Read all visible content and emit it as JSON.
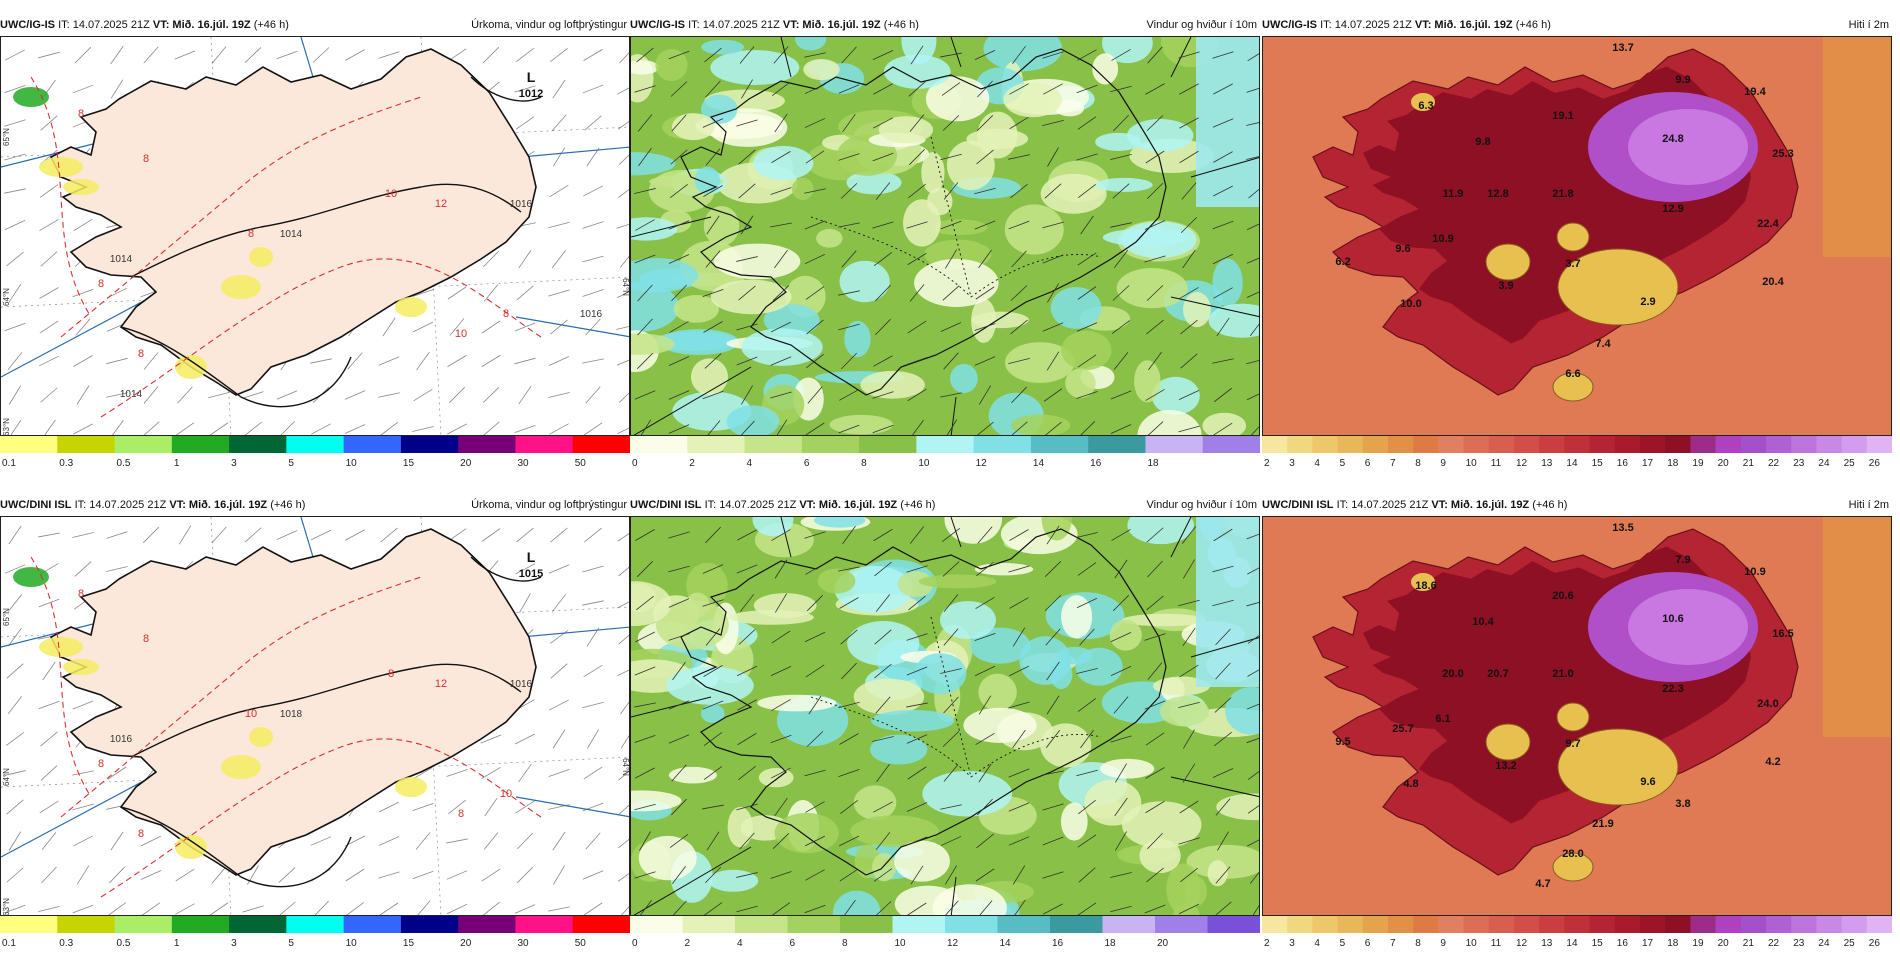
{
  "panels": [
    {
      "model": "UWC/IG-IS",
      "it": "IT: 14.07.2025 21Z",
      "vt": "VT: Mið. 16.júl. 19Z",
      "lead": "(+46 h)",
      "title": "Úrkoma, vindur og loftþrýstingur",
      "kind": "precip",
      "low_label": "L",
      "low_value": "1012",
      "isobar_labels": [
        "1016",
        "1014",
        "1014",
        "1014",
        "1016"
      ],
      "red_labels": [
        "8",
        "8",
        "8",
        "10",
        "12",
        "8",
        "10",
        "8",
        "8"
      ],
      "lat_labels": [
        "65°N",
        "64°N",
        "63°N",
        "64°N"
      ]
    },
    {
      "model": "UWC/IG-IS",
      "it": "IT: 14.07.2025 21Z",
      "vt": "VT: Mið. 16.júl. 19Z",
      "lead": "(+46 h)",
      "title": "Vindur og hviður í 10m",
      "kind": "wind"
    },
    {
      "model": "UWC/IG-IS",
      "it": "IT: 14.07.2025 21Z",
      "vt": "VT: Mið. 16.júl. 19Z",
      "lead": "(+46 h)",
      "title": "Hiti í 2m",
      "kind": "temp",
      "values": [
        "13.7",
        "9.9",
        "19.4",
        "6.3",
        "19.1",
        "9.8",
        "24.8",
        "25.3",
        "11.9",
        "12.8",
        "21.8",
        "12.9",
        "22.4",
        "9.6",
        "10.9",
        "6.2",
        "3.9",
        "3.7",
        "10.0",
        "20.4",
        "2.9",
        "7.4",
        "6.6"
      ]
    },
    {
      "model": "UWC/DINI ISL",
      "it": "IT: 14.07.2025 21Z",
      "vt": "VT: Mið. 16.júl. 19Z",
      "lead": "(+46 h)",
      "title": "Úrkoma, vindur og loftþrýstingur",
      "kind": "precip",
      "low_label": "L",
      "low_value": "1015",
      "isobar_labels": [
        "1016",
        "1018",
        "1016"
      ],
      "red_labels": [
        "8",
        "8",
        "10",
        "8",
        "12",
        "10",
        "8",
        "8",
        "8"
      ],
      "lat_labels": [
        "65°N",
        "64°N",
        "63°N",
        "64°N"
      ]
    },
    {
      "model": "UWC/DINI ISL",
      "it": "IT: 14.07.2025 21Z",
      "vt": "VT: Mið. 16.júl. 19Z",
      "lead": "(+46 h)",
      "title": "Vindur og hviður í 10m",
      "kind": "wind"
    },
    {
      "model": "UWC/DINI ISL",
      "it": "IT: 14.07.2025 21Z",
      "vt": "VT: Mið. 16.júl. 19Z",
      "lead": "(+46 h)",
      "title": "Hiti í 2m",
      "kind": "temp",
      "values": [
        "13.5",
        "7.9",
        "10.9",
        "18.6",
        "20.6",
        "10.4",
        "10.6",
        "16.5",
        "20.0",
        "20.7",
        "21.0",
        "22.3",
        "24.0",
        "25.7",
        "6.1",
        "9.5",
        "13.2",
        "9.7",
        "4.8",
        "4.2",
        "9.6",
        "21.9",
        "28.0",
        "3.8",
        "4.7"
      ]
    }
  ],
  "legends": {
    "precip": {
      "labels": [
        "0.1",
        "0.3",
        "0.5",
        "1",
        "3",
        "5",
        "10",
        "15",
        "20",
        "30",
        "50"
      ],
      "colors": [
        "#ffff80",
        "#c8d400",
        "#aaee66",
        "#22aa22",
        "#006633",
        "#00ffee",
        "#3366ff",
        "#000088",
        "#770077",
        "#ff1188",
        "#ff0000"
      ]
    },
    "wind_top": {
      "labels": [
        "0",
        "2",
        "4",
        "6",
        "8",
        "10",
        "12",
        "14",
        "16",
        "18"
      ],
      "colors": [
        "#fafee8",
        "#e4f2b8",
        "#c6e48a",
        "#a4d25e",
        "#88c048",
        "#b0f4f4",
        "#80e0e6",
        "#58bcc4",
        "#3a9aa0",
        "#c8b4f2",
        "#a080e8"
      ]
    },
    "wind_bottom": {
      "labels": [
        "0",
        "2",
        "4",
        "6",
        "8",
        "10",
        "12",
        "14",
        "16",
        "18",
        "20"
      ],
      "colors": [
        "#fafee8",
        "#e4f2b8",
        "#c6e48a",
        "#a4d25e",
        "#88c048",
        "#b0f4f4",
        "#80e0e6",
        "#58bcc4",
        "#3a9aa0",
        "#c8b4f2",
        "#a080e8",
        "#7a50d8"
      ]
    },
    "temp": {
      "labels": [
        "2",
        "3",
        "4",
        "5",
        "6",
        "7",
        "8",
        "9",
        "10",
        "11",
        "12",
        "13",
        "14",
        "15",
        "16",
        "17",
        "18",
        "19",
        "20",
        "21",
        "22",
        "23",
        "24",
        "25",
        "26"
      ],
      "colors": [
        "#f6e6a0",
        "#f0d880",
        "#ecc868",
        "#e8b858",
        "#e4a44c",
        "#e29046",
        "#e07a44",
        "#e08060",
        "#dc6e58",
        "#d85e50",
        "#d24e48",
        "#ca3e40",
        "#c03038",
        "#b42432",
        "#a81a2c",
        "#9c1428",
        "#8e1024",
        "#9c2c88",
        "#b040c0",
        "#a450cc",
        "#b060d6",
        "#bc74de",
        "#c888e6",
        "#d49cee",
        "#e0b4f4"
      ]
    }
  }
}
